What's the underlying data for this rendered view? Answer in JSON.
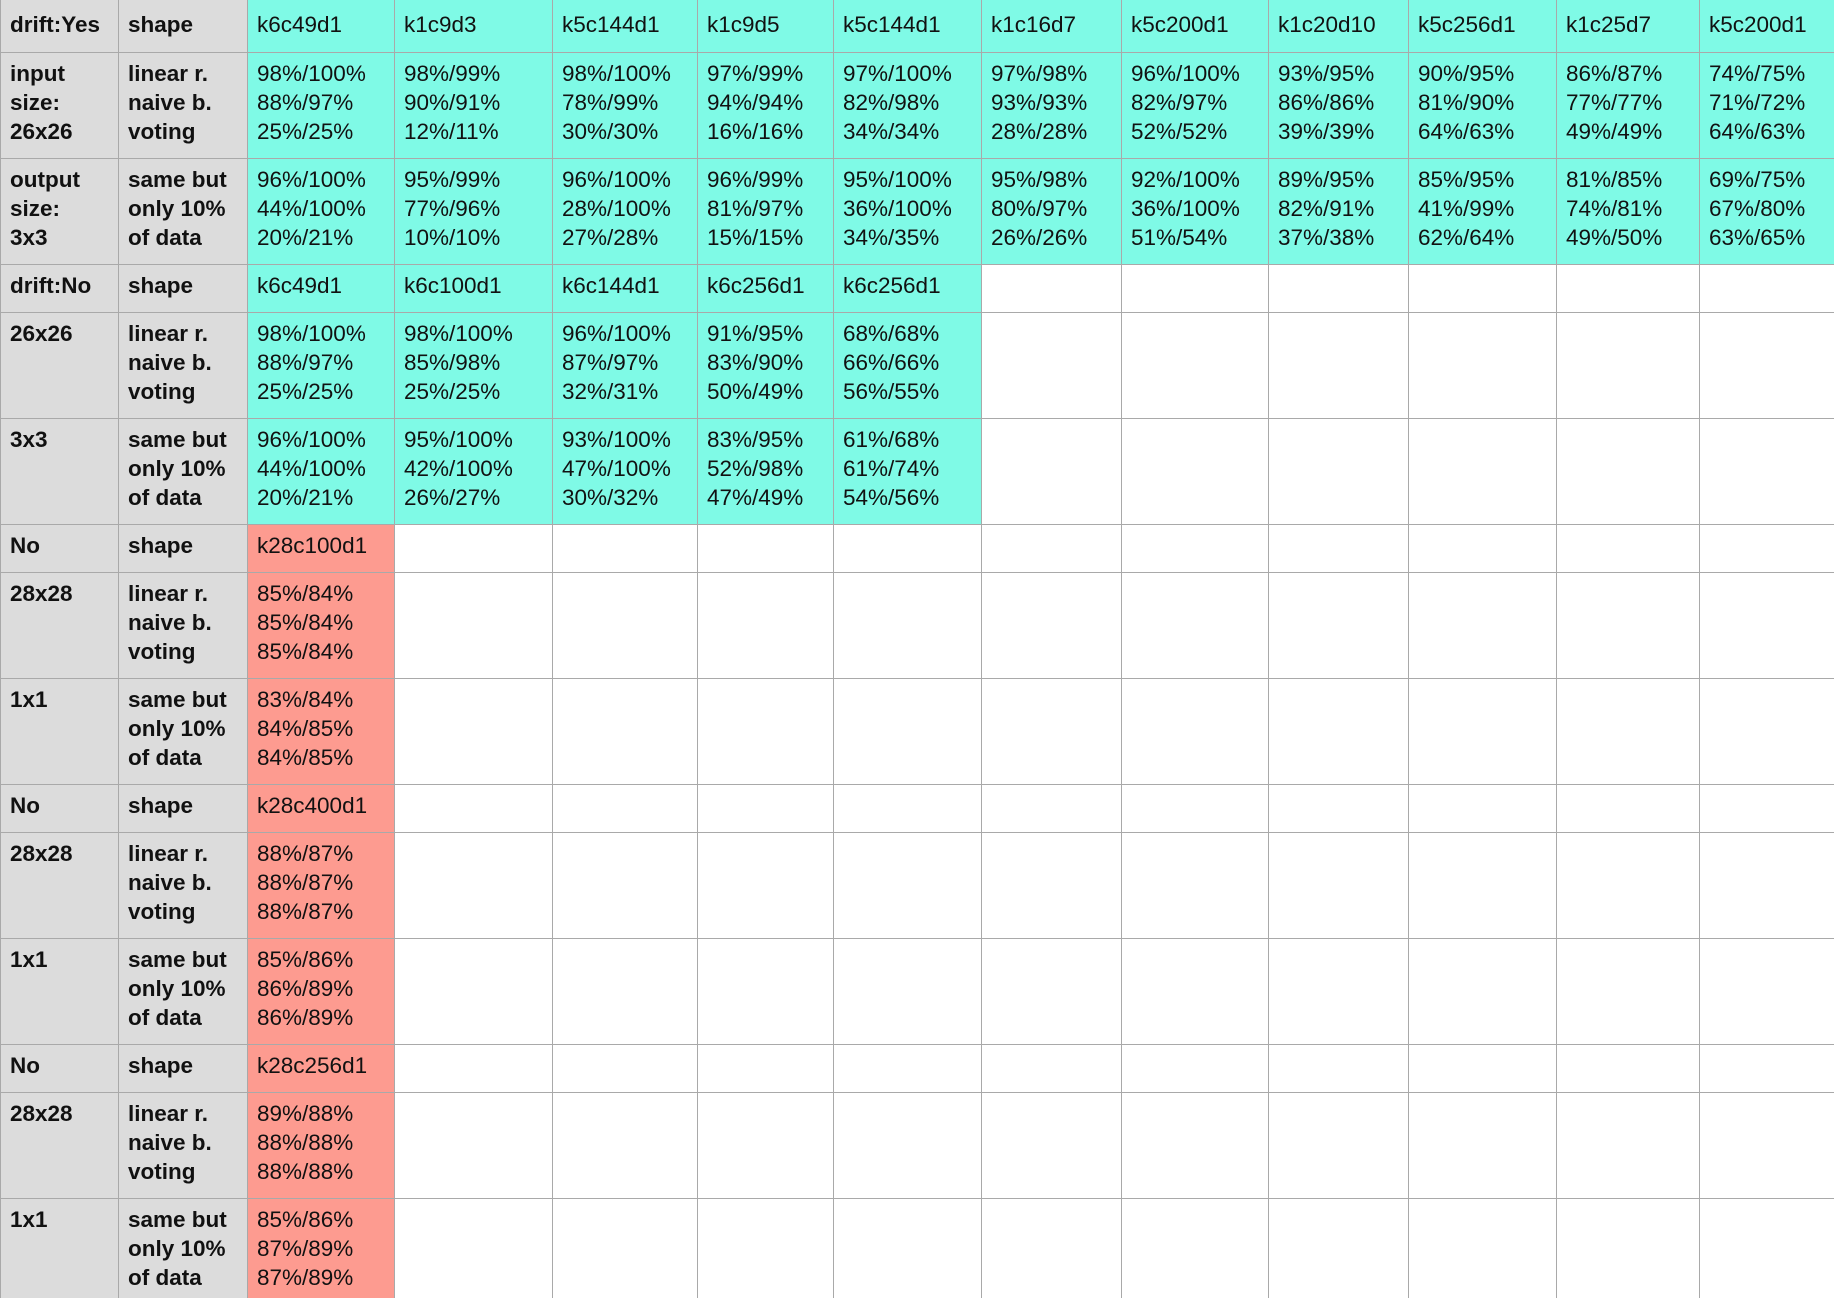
{
  "colors": {
    "header_bg": "#dcdcdc",
    "teal": "#7ffae6",
    "salmon": "#fd9b90",
    "grid_line": "#a9a9a9"
  },
  "data_columns": 11,
  "rows": [
    {
      "kind": "short",
      "a": "drift:Yes",
      "b": "shape",
      "fill": "teal",
      "cells": [
        "k6c49d1",
        "k1c9d3",
        "k5c144d1",
        "k1c9d5",
        "k5c144d1",
        "k1c16d7",
        "k5c200d1",
        "k1c20d10",
        "k5c256d1",
        "k1c25d7",
        "k5c200d1"
      ]
    },
    {
      "kind": "tall",
      "a": "input\nsize:\n26x26",
      "b": "linear r.\nnaive b.\nvoting",
      "fill": "teal",
      "cells": [
        "98%/100%\n88%/97%\n25%/25%",
        "98%/99%\n90%/91%\n12%/11%",
        "98%/100%\n78%/99%\n30%/30%",
        "97%/99%\n94%/94%\n16%/16%",
        "97%/100%\n82%/98%\n34%/34%",
        "97%/98%\n93%/93%\n28%/28%",
        "96%/100%\n82%/97%\n52%/52%",
        "93%/95%\n86%/86%\n39%/39%",
        "90%/95%\n81%/90%\n64%/63%",
        "86%/87%\n77%/77%\n49%/49%",
        "74%/75%\n71%/72%\n64%/63%"
      ]
    },
    {
      "kind": "tall",
      "a": "output\nsize:\n3x3",
      "b": "same but\nonly 10%\nof data",
      "fill": "teal",
      "cells": [
        "96%/100%\n44%/100%\n20%/21%",
        "95%/99%\n77%/96%\n10%/10%",
        "96%/100%\n28%/100%\n27%/28%",
        "96%/99%\n81%/97%\n15%/15%",
        "95%/100%\n36%/100%\n34%/35%",
        "95%/98%\n80%/97%\n26%/26%",
        "92%/100%\n36%/100%\n51%/54%",
        "89%/95%\n82%/91%\n37%/38%",
        "85%/95%\n41%/99%\n62%/64%",
        "81%/85%\n74%/81%\n49%/50%",
        "69%/75%\n67%/80%\n63%/65%"
      ]
    },
    {
      "kind": "short",
      "a": "drift:No",
      "b": "shape",
      "fill": "teal",
      "cells": [
        "k6c49d1",
        "k6c100d1",
        "k6c144d1",
        "k6c256d1",
        "k6c256d1"
      ]
    },
    {
      "kind": "tall",
      "a": "26x26",
      "b": "linear r.\nnaive b.\nvoting",
      "fill": "teal",
      "cells": [
        "98%/100%\n88%/97%\n25%/25%",
        "98%/100%\n85%/98%\n25%/25%",
        "96%/100%\n87%/97%\n32%/31%",
        "91%/95%\n83%/90%\n50%/49%",
        "68%/68%\n66%/66%\n56%/55%"
      ]
    },
    {
      "kind": "tall",
      "a": "3x3",
      "b": "same but\nonly 10%\nof data",
      "fill": "teal",
      "cells": [
        "96%/100%\n44%/100%\n20%/21%",
        "95%/100%\n42%/100%\n26%/27%",
        "93%/100%\n47%/100%\n30%/32%",
        "83%/95%\n52%/98%\n47%/49%",
        "61%/68%\n61%/74%\n54%/56%"
      ]
    },
    {
      "kind": "short",
      "a": "No",
      "b": "shape",
      "fill": "salmon",
      "cells": [
        "k28c100d1"
      ]
    },
    {
      "kind": "tall",
      "a": "28x28",
      "b": "linear r.\nnaive b.\nvoting",
      "fill": "salmon",
      "cells": [
        "85%/84%\n85%/84%\n85%/84%"
      ]
    },
    {
      "kind": "tall",
      "a": "1x1",
      "b": "same but\nonly 10%\nof data",
      "fill": "salmon",
      "cells": [
        "83%/84%\n84%/85%\n84%/85%"
      ]
    },
    {
      "kind": "short",
      "a": "No",
      "b": "shape",
      "fill": "salmon",
      "cells": [
        "k28c400d1"
      ]
    },
    {
      "kind": "tall",
      "a": "28x28",
      "b": "linear r.\nnaive b.\nvoting",
      "fill": "salmon",
      "cells": [
        "88%/87%\n88%/87%\n88%/87%"
      ]
    },
    {
      "kind": "tall",
      "a": "1x1",
      "b": "same but\nonly 10%\nof data",
      "fill": "salmon",
      "cells": [
        "85%/86%\n86%/89%\n86%/89%"
      ]
    },
    {
      "kind": "short",
      "a": "No",
      "b": "shape",
      "fill": "salmon",
      "cells": [
        "k28c256d1"
      ]
    },
    {
      "kind": "tall",
      "a": "28x28",
      "b": "linear r.\nnaive b.\nvoting",
      "fill": "salmon",
      "cells": [
        "89%/88%\n88%/88%\n88%/88%"
      ]
    },
    {
      "kind": "tall",
      "a": "1x1",
      "b": "same but\nonly 10%\nof data",
      "fill": "salmon",
      "cells": [
        "85%/86%\n87%/89%\n87%/89%"
      ]
    }
  ]
}
